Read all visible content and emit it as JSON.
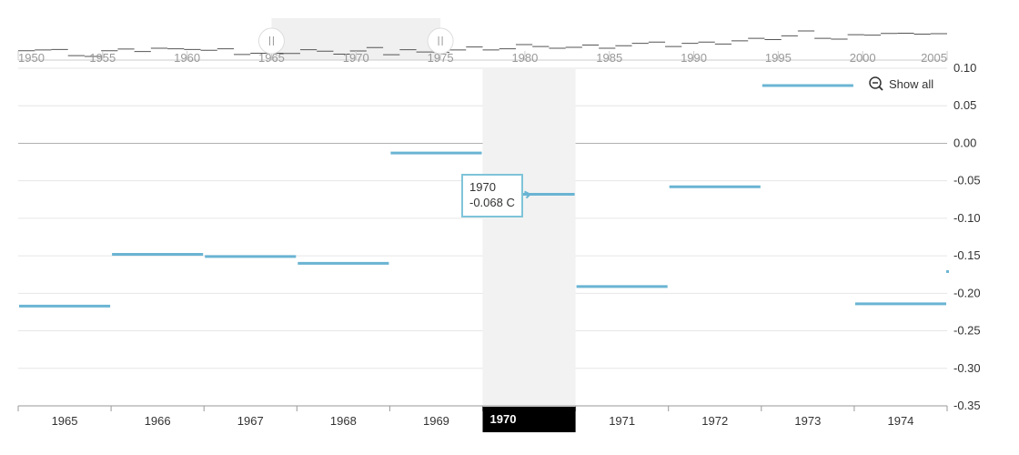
{
  "chart_data": {
    "type": "line",
    "step": true,
    "categories": [
      "1965",
      "1966",
      "1967",
      "1968",
      "1969",
      "1970",
      "1971",
      "1972",
      "1973",
      "1974"
    ],
    "series": [
      {
        "values": [
          -0.217,
          -0.148,
          -0.151,
          -0.16,
          -0.013,
          -0.068,
          -0.191,
          -0.058,
          0.077,
          -0.214
        ]
      }
    ],
    "edge_value_right": -0.171,
    "ylim": [
      -0.35,
      0.1
    ],
    "yticks": [
      "0.10",
      "0.05",
      "0.00",
      "-0.05",
      "-0.10",
      "-0.15",
      "-0.20",
      "-0.25",
      "-0.30",
      "-0.35"
    ],
    "ytick_values": [
      0.1,
      0.05,
      0.0,
      -0.05,
      -0.1,
      -0.15,
      -0.2,
      -0.25,
      -0.3,
      -0.35
    ],
    "highlighted_category": "1970",
    "line_color": "#6ab4d3",
    "grid": true,
    "title": "",
    "xlabel": "",
    "ylabel": ""
  },
  "navigator": {
    "years": [
      "1950",
      "1955",
      "1960",
      "1965",
      "1970",
      "1975",
      "1980",
      "1985",
      "1990",
      "1995",
      "2000",
      "2005"
    ],
    "year_values": [
      1950,
      1955,
      1960,
      1965,
      1970,
      1975,
      1980,
      1985,
      1990,
      1995,
      2000,
      2005
    ],
    "range": [
      1950,
      2005
    ],
    "selection": [
      1965,
      1975
    ],
    "values": [
      -0.05,
      -0.02,
      0.0,
      -0.25,
      -0.28,
      -0.05,
      0.02,
      -0.08,
      0.05,
      0.03,
      0.0,
      -0.03,
      0.03,
      -0.2,
      -0.15,
      -0.15,
      -0.16,
      -0.01,
      -0.07,
      -0.19,
      -0.06,
      0.08,
      -0.21,
      -0.01,
      -0.1,
      -0.12,
      -0.02,
      0.1,
      -0.02,
      0.03,
      0.2,
      0.12,
      0.05,
      0.09,
      0.18,
      0.05,
      0.15,
      0.25,
      0.3,
      0.12,
      0.25,
      0.3,
      0.22,
      0.35,
      0.45,
      0.4,
      0.55,
      0.75,
      0.45,
      0.42,
      0.6,
      0.58,
      0.65,
      0.66,
      0.62,
      0.64
    ]
  },
  "tooltip": {
    "label": "1970",
    "value": "-0.068 C"
  },
  "show_all": {
    "label": "Show all",
    "icon": "zoom-out-icon"
  }
}
